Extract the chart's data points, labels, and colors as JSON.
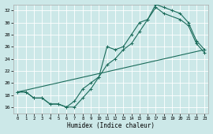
{
  "title": "",
  "xlabel": "Humidex (Indice chaleur)",
  "ylabel": "",
  "background_color": "#cce8e8",
  "grid_color": "#b0d4d4",
  "line_color": "#1a6b5a",
  "xlim": [
    -0.5,
    23.5
  ],
  "ylim": [
    15.0,
    33.0
  ],
  "xticks": [
    0,
    1,
    2,
    3,
    4,
    5,
    6,
    7,
    8,
    9,
    10,
    11,
    12,
    13,
    14,
    15,
    16,
    17,
    18,
    19,
    20,
    21,
    22,
    23
  ],
  "yticks": [
    16,
    18,
    20,
    22,
    24,
    26,
    28,
    30,
    32
  ],
  "series1_x": [
    0,
    1,
    2,
    3,
    4,
    5,
    6,
    7,
    8,
    9,
    10,
    11,
    12,
    13,
    14,
    15,
    16,
    17,
    18,
    20,
    21,
    22,
    23
  ],
  "series1_y": [
    18.5,
    18.5,
    17.5,
    17.5,
    16.5,
    16.5,
    16.0,
    17.0,
    19.0,
    20.0,
    21.0,
    26.0,
    25.5,
    26.0,
    28.0,
    30.0,
    30.5,
    32.5,
    31.5,
    30.5,
    29.5,
    26.5,
    25.0
  ],
  "series2_x": [
    0,
    1,
    2,
    3,
    4,
    5,
    6,
    7,
    8,
    9,
    10,
    11,
    12,
    13,
    14,
    15,
    16,
    17,
    18,
    19,
    20,
    21,
    22,
    23
  ],
  "series2_y": [
    18.5,
    18.5,
    17.5,
    17.5,
    16.5,
    16.5,
    16.0,
    16.0,
    17.5,
    19.0,
    21.0,
    23.0,
    24.0,
    25.5,
    26.5,
    28.5,
    30.5,
    33.0,
    32.5,
    32.0,
    31.5,
    30.0,
    27.0,
    25.5
  ],
  "series3_x": [
    0,
    23
  ],
  "series3_y": [
    18.5,
    25.5
  ]
}
